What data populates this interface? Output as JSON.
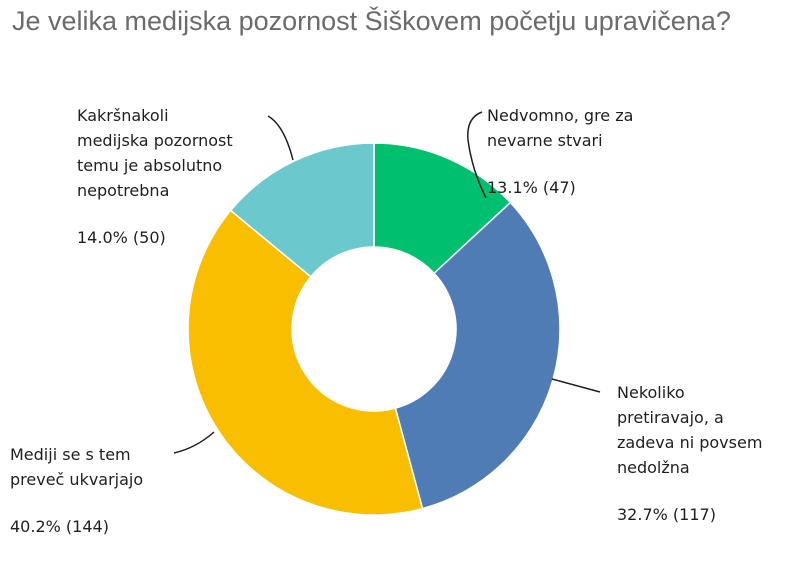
{
  "title": "Je velika medijska pozornost Šiškovem početju upravičena?",
  "chart_data": {
    "type": "pie",
    "donut": true,
    "slices": [
      {
        "label": "Nedvomno, gre za nevarne stvari",
        "lines": [
          "Nedvomno, gre za",
          "nevarne stvari"
        ],
        "percent": 13.1,
        "count": 47,
        "value_text": "13.1% (47)",
        "color": "#00bf6f"
      },
      {
        "label": "Nekoliko pretiravajo, a zadeva ni povsem nedolžna",
        "lines": [
          "Nekoliko",
          "pretiravajo, a",
          "zadeva ni povsem",
          "nedolžna"
        ],
        "percent": 32.7,
        "count": 117,
        "value_text": "32.7% (117)",
        "color": "#507cb6"
      },
      {
        "label": "Mediji se s tem preveč ukvarjajo",
        "lines": [
          "Mediji se s tem",
          "preveč ukvarjajo"
        ],
        "percent": 40.2,
        "count": 144,
        "value_text": "40.2% (144)",
        "color": "#f9be00"
      },
      {
        "label": "Kakršnakoli medijska pozornost temu je absolutno nepotrebna",
        "lines": [
          "Kakršnakoli",
          "medijska pozornost",
          "temu je absolutno",
          "nepotrebna"
        ],
        "percent": 14.0,
        "count": 50,
        "value_text": "14.0% (50)",
        "color": "#6bc8cd"
      }
    ]
  }
}
